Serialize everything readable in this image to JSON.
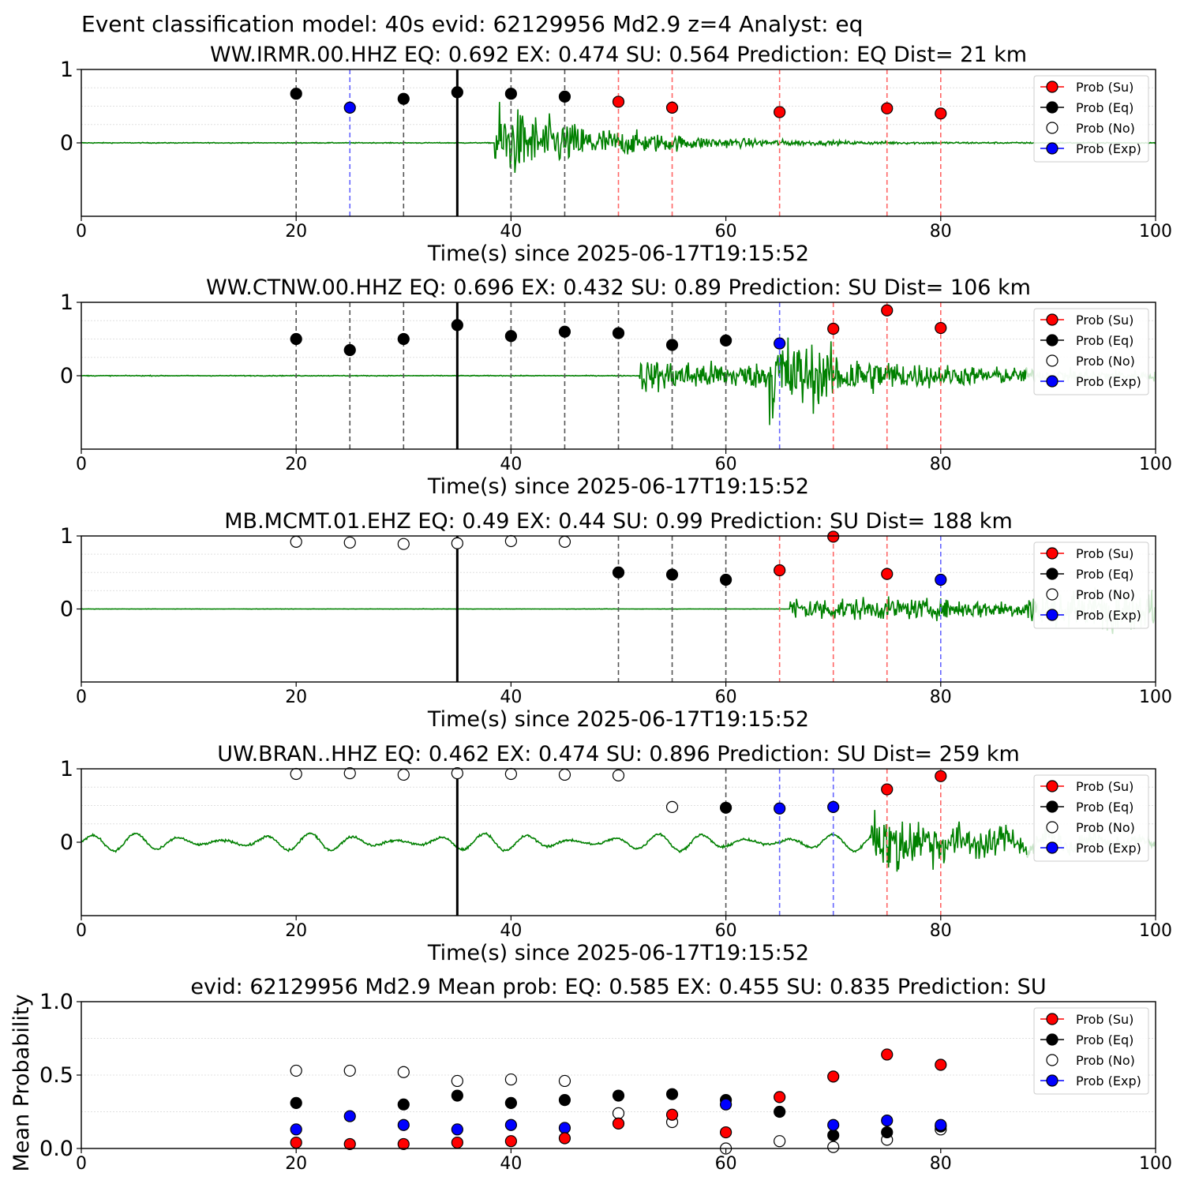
{
  "suptitle": "Event classification model: 40s evid: 62129956 Md2.9 z=4 Analyst: eq",
  "colors": {
    "su": "#ff0000",
    "eq": "#000000",
    "no": "#ffffff",
    "exp": "#0000ff",
    "waveform": "#008000",
    "waveform_faded": "#c8e6c8",
    "vline_su": "#ff6666",
    "vline_eq": "#555555",
    "vline_exp": "#6666ff"
  },
  "legend": [
    "Prob (Su)",
    "Prob (Eq)",
    "Prob (No)",
    "Prob (Exp)"
  ],
  "chart_data": [
    {
      "type": "scatter",
      "title": "WW.IRMR.00.HHZ   EQ: 0.692  EX: 0.474  SU: 0.564   Prediction: EQ    Dist= 21 km",
      "xlabel": "Time(s) since 2025-06-17T19:15:52",
      "ylabel": "",
      "xlim": [
        0,
        100
      ],
      "ylim": [
        -1,
        1
      ],
      "xticks": [
        "0",
        "20",
        "40",
        "60",
        "80",
        "100"
      ],
      "yticks": [
        "1",
        "0"
      ],
      "marker_line": 35,
      "waveform": {
        "onset": 38.5,
        "peak": 1.0,
        "decay": 10,
        "noise": 0.01,
        "fade_after": 100
      },
      "points": [
        {
          "t": 20,
          "p": 0.67,
          "cls": "eq"
        },
        {
          "t": 25,
          "p": 0.48,
          "cls": "exp"
        },
        {
          "t": 30,
          "p": 0.6,
          "cls": "eq"
        },
        {
          "t": 35,
          "p": 0.69,
          "cls": "eq"
        },
        {
          "t": 40,
          "p": 0.67,
          "cls": "eq"
        },
        {
          "t": 45,
          "p": 0.63,
          "cls": "eq"
        },
        {
          "t": 50,
          "p": 0.56,
          "cls": "su"
        },
        {
          "t": 55,
          "p": 0.48,
          "cls": "su"
        },
        {
          "t": 65,
          "p": 0.42,
          "cls": "su"
        },
        {
          "t": 75,
          "p": 0.47,
          "cls": "su"
        },
        {
          "t": 80,
          "p": 0.4,
          "cls": "su"
        }
      ]
    },
    {
      "type": "scatter",
      "title": "WW.CTNW.00.HHZ   EQ: 0.696  EX: 0.432  SU: 0.89   Prediction: SU    Dist= 106 km",
      "xlabel": "Time(s) since 2025-06-17T19:15:52",
      "ylabel": "",
      "xlim": [
        0,
        100
      ],
      "ylim": [
        -1,
        1
      ],
      "xticks": [
        "0",
        "20",
        "40",
        "60",
        "80",
        "100"
      ],
      "yticks": [
        "1",
        "0"
      ],
      "marker_line": 35,
      "waveform": {
        "onset": 52,
        "peak": 0.4,
        "decay": 40,
        "onset2": 64,
        "peak2": 1.0,
        "decay2": 6,
        "noise": 0.01,
        "fade_after": 88
      },
      "points": [
        {
          "t": 20,
          "p": 0.5,
          "cls": "eq"
        },
        {
          "t": 25,
          "p": 0.35,
          "cls": "eq"
        },
        {
          "t": 30,
          "p": 0.5,
          "cls": "eq"
        },
        {
          "t": 35,
          "p": 0.69,
          "cls": "eq"
        },
        {
          "t": 40,
          "p": 0.54,
          "cls": "eq"
        },
        {
          "t": 45,
          "p": 0.6,
          "cls": "eq"
        },
        {
          "t": 50,
          "p": 0.58,
          "cls": "eq"
        },
        {
          "t": 55,
          "p": 0.42,
          "cls": "eq"
        },
        {
          "t": 60,
          "p": 0.48,
          "cls": "eq"
        },
        {
          "t": 65,
          "p": 0.44,
          "cls": "exp"
        },
        {
          "t": 70,
          "p": 0.64,
          "cls": "su"
        },
        {
          "t": 75,
          "p": 0.89,
          "cls": "su"
        },
        {
          "t": 80,
          "p": 0.65,
          "cls": "su"
        }
      ]
    },
    {
      "type": "scatter",
      "title": "MB.MCMT.01.EHZ   EQ: 0.49  EX: 0.44  SU: 0.99   Prediction: SU    Dist= 188 km",
      "xlabel": "Time(s) since 2025-06-17T19:15:52",
      "ylabel": "",
      "xlim": [
        0,
        100
      ],
      "ylim": [
        -1,
        1
      ],
      "xticks": [
        "0",
        "20",
        "40",
        "60",
        "80",
        "100"
      ],
      "yticks": [
        "1",
        "0"
      ],
      "marker_line": 35,
      "waveform": {
        "onset": 66,
        "peak": 0.3,
        "decay": 60,
        "noise": 0.004,
        "fade_after": 89,
        "tail_burst": 0.7
      },
      "points": [
        {
          "t": 20,
          "p": 0.92,
          "cls": "no"
        },
        {
          "t": 25,
          "p": 0.91,
          "cls": "no"
        },
        {
          "t": 30,
          "p": 0.89,
          "cls": "no"
        },
        {
          "t": 35,
          "p": 0.9,
          "cls": "no"
        },
        {
          "t": 40,
          "p": 0.93,
          "cls": "no"
        },
        {
          "t": 45,
          "p": 0.92,
          "cls": "no"
        },
        {
          "t": 50,
          "p": 0.5,
          "cls": "eq"
        },
        {
          "t": 55,
          "p": 0.47,
          "cls": "eq"
        },
        {
          "t": 60,
          "p": 0.4,
          "cls": "eq"
        },
        {
          "t": 65,
          "p": 0.53,
          "cls": "su"
        },
        {
          "t": 70,
          "p": 0.99,
          "cls": "su"
        },
        {
          "t": 75,
          "p": 0.48,
          "cls": "su"
        },
        {
          "t": 80,
          "p": 0.4,
          "cls": "exp"
        }
      ]
    },
    {
      "type": "scatter",
      "title": "UW.BRAN..HHZ   EQ: 0.462  EX: 0.474  SU: 0.896   Prediction: SU    Dist= 259 km",
      "xlabel": "Time(s) since 2025-06-17T19:15:52",
      "ylabel": "",
      "xlim": [
        0,
        100
      ],
      "ylim": [
        -1,
        1
      ],
      "xticks": [
        "0",
        "20",
        "40",
        "60",
        "80",
        "100"
      ],
      "yticks": [
        "1",
        "0"
      ],
      "marker_line": 35,
      "waveform": {
        "onset": 73.5,
        "peak": 0.85,
        "decay": 12,
        "noise": 0.03,
        "swell": 0.12,
        "fade_after": 88
      },
      "points": [
        {
          "t": 20,
          "p": 0.93,
          "cls": "no"
        },
        {
          "t": 25,
          "p": 0.94,
          "cls": "no"
        },
        {
          "t": 30,
          "p": 0.92,
          "cls": "no"
        },
        {
          "t": 35,
          "p": 0.94,
          "cls": "no"
        },
        {
          "t": 40,
          "p": 0.93,
          "cls": "no"
        },
        {
          "t": 45,
          "p": 0.92,
          "cls": "no"
        },
        {
          "t": 50,
          "p": 0.91,
          "cls": "no"
        },
        {
          "t": 55,
          "p": 0.48,
          "cls": "no"
        },
        {
          "t": 60,
          "p": 0.47,
          "cls": "eq"
        },
        {
          "t": 65,
          "p": 0.46,
          "cls": "exp"
        },
        {
          "t": 70,
          "p": 0.48,
          "cls": "exp"
        },
        {
          "t": 75,
          "p": 0.72,
          "cls": "su"
        },
        {
          "t": 80,
          "p": 0.9,
          "cls": "su"
        }
      ]
    },
    {
      "type": "scatter",
      "title": "evid: 62129956  Md2.9   Mean prob:   EQ: 0.585  EX: 0.455  SU: 0.835   Prediction: SU",
      "xlabel": "",
      "ylabel": "Mean Probability",
      "xlim": [
        0,
        100
      ],
      "ylim": [
        0,
        1.0
      ],
      "xticks": [
        "0",
        "20",
        "40",
        "60",
        "80",
        "100"
      ],
      "yticks": [
        "1.0",
        "0.5",
        "0.0"
      ],
      "t": [
        20,
        25,
        30,
        35,
        40,
        45,
        50,
        55,
        60,
        65,
        70,
        75,
        80
      ],
      "series": [
        {
          "name": "Prob (No)",
          "cls": "no",
          "values": [
            0.53,
            0.53,
            0.52,
            0.46,
            0.47,
            0.46,
            0.24,
            0.18,
            0.0,
            0.05,
            0.01,
            0.06,
            0.13
          ]
        },
        {
          "name": "Prob (Eq)",
          "cls": "eq",
          "values": [
            0.31,
            null,
            0.3,
            0.36,
            0.31,
            0.33,
            0.36,
            0.37,
            0.33,
            0.25,
            0.09,
            0.11,
            0.15
          ]
        },
        {
          "name": "Prob (Exp)",
          "cls": "exp",
          "values": [
            0.13,
            0.22,
            0.16,
            0.13,
            0.16,
            0.14,
            null,
            null,
            0.3,
            null,
            0.16,
            0.19,
            0.16
          ]
        },
        {
          "name": "Prob (Su)",
          "cls": "su",
          "values": [
            0.04,
            0.03,
            0.03,
            0.04,
            0.05,
            0.07,
            0.17,
            0.23,
            0.11,
            0.35,
            0.49,
            0.64,
            0.57
          ]
        }
      ]
    }
  ]
}
